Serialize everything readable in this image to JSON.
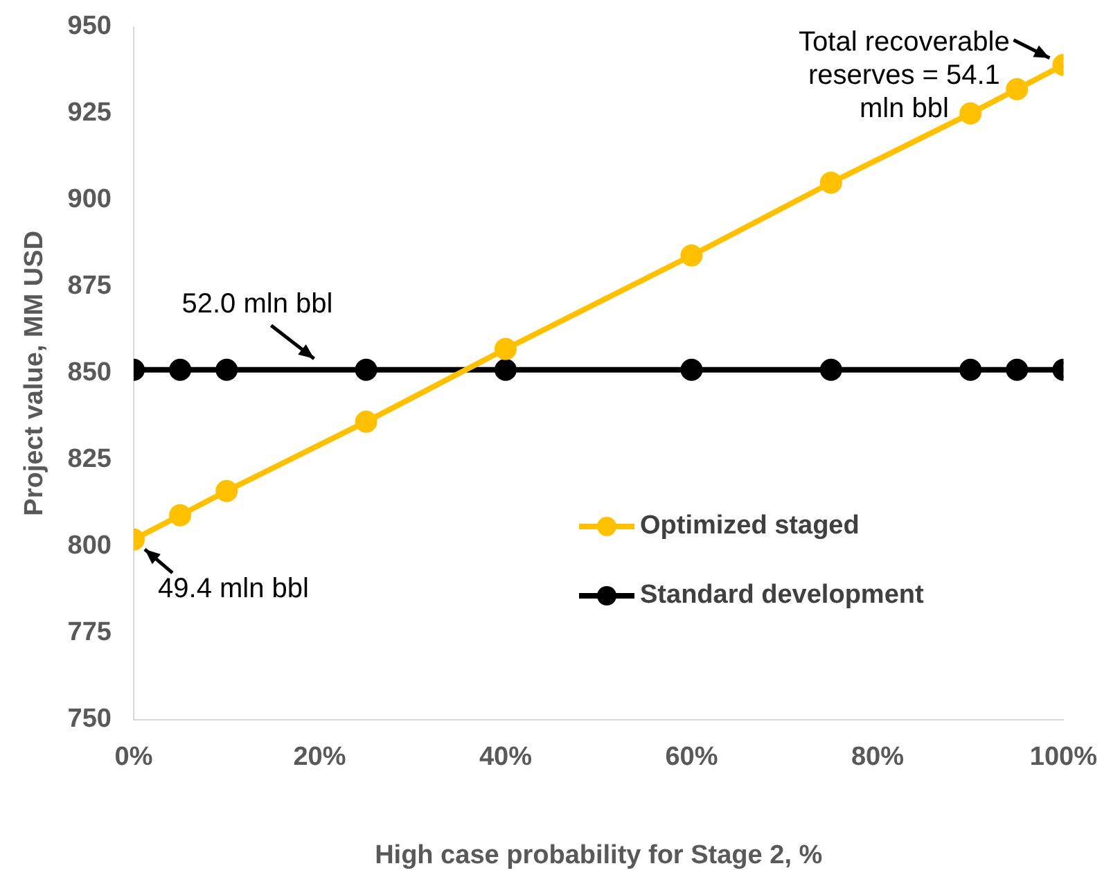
{
  "chart_data": {
    "type": "line",
    "xlabel": "High case probability for Stage 2, %",
    "ylabel": "Project value, MM USD",
    "xlim": [
      0,
      100
    ],
    "xticks": [
      {
        "value": 0,
        "label": "0%"
      },
      {
        "value": 20,
        "label": "20%"
      },
      {
        "value": 40,
        "label": "40%"
      },
      {
        "value": 60,
        "label": "60%"
      },
      {
        "value": 80,
        "label": "80%"
      },
      {
        "value": 100,
        "label": "100%"
      }
    ],
    "ylim": [
      750,
      950
    ],
    "yticks": [
      750,
      775,
      800,
      825,
      850,
      875,
      900,
      925,
      950
    ],
    "x": [
      0,
      5,
      10,
      25,
      40,
      60,
      75,
      90,
      95,
      100
    ],
    "series": [
      {
        "name": "Optimized staged",
        "color": "#ffc000",
        "values": [
          802,
          809,
          816,
          836,
          857,
          884,
          905,
          925,
          932,
          939
        ]
      },
      {
        "name": "Standard development",
        "color": "#000000",
        "values": [
          851,
          851,
          851,
          851,
          851,
          851,
          851,
          851,
          851,
          851
        ]
      }
    ],
    "marker": "circle",
    "line_style": "solid",
    "grid": false,
    "legend": "right",
    "annotations": [
      {
        "text": "52.0 mln bbl",
        "x": 20,
        "y": 851
      },
      {
        "text": "49.4 mln bbl",
        "x": 0,
        "y": 802
      },
      {
        "text": "Total recoverable reserves = 54.1 mln bbl",
        "x": 100,
        "y": 939
      }
    ]
  }
}
